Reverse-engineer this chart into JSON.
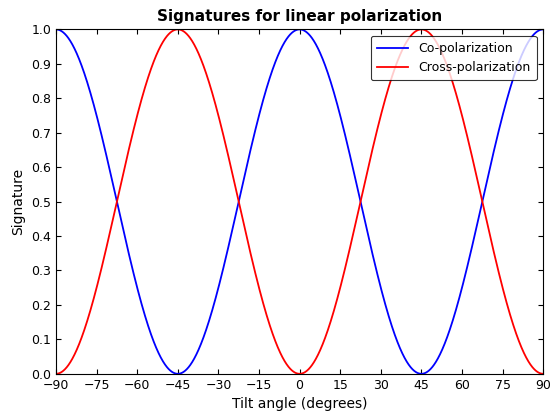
{
  "title": "Signatures for linear polarization",
  "xlabel": "Tilt angle (degrees)",
  "ylabel": "Signature",
  "xlim": [
    -90,
    90
  ],
  "ylim": [
    0,
    1
  ],
  "xticks": [
    -90,
    -75,
    -60,
    -45,
    -30,
    -15,
    0,
    15,
    30,
    45,
    60,
    75,
    90
  ],
  "yticks": [
    0,
    0.1,
    0.2,
    0.3,
    0.4,
    0.5,
    0.6,
    0.7,
    0.8,
    0.9,
    1.0
  ],
  "co_color": "#0000FF",
  "cross_color": "#FF0000",
  "co_label": "Co-polarization",
  "cross_label": "Cross-polarization",
  "line_width": 1.3,
  "background_color": "#FFFFFF",
  "title_fontsize": 11,
  "axis_label_fontsize": 10,
  "tick_fontsize": 9
}
